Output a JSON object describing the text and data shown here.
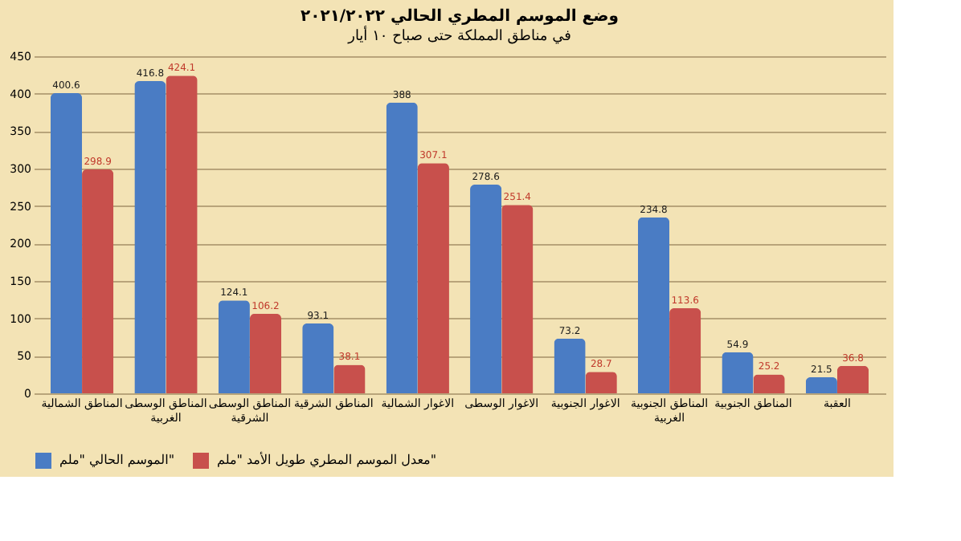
{
  "chart_data": {
    "type": "bar",
    "title": "وضع الموسم المطري الحالي ٢٠٢١/٢٠٢٢",
    "subtitle": "في مناطق المملكة حتى صباح ١٠ أيار",
    "categories": [
      "المناطق الشمالية",
      "المناطق الوسطى الغربية",
      "المناطق الوسطى الشرقية",
      "المناطق الشرقية",
      "الاغوار الشمالية",
      "الاغوار الوسطى",
      "الاغوار الجنوبية",
      "المناطق الجنوبية الغربية",
      "المناطق الجنوبية",
      "العقبة"
    ],
    "series": [
      {
        "name": "الموسم الحالي \"ملم\"",
        "color": "#4a7cc4",
        "values": [
          400.6,
          416.8,
          124.1,
          93.1,
          388,
          278.6,
          73.2,
          234.8,
          54.9,
          21.5
        ]
      },
      {
        "name": "معدل الموسم المطري طويل الأمد \"ملم\"",
        "color": "#c8504c",
        "values": [
          298.9,
          424.1,
          106.2,
          38.1,
          307.1,
          251.4,
          28.7,
          113.6,
          25.2,
          36.8
        ]
      }
    ],
    "ylim": [
      0,
      450
    ],
    "yticks": [
      0,
      50,
      100,
      150,
      200,
      250,
      300,
      350,
      400,
      450
    ],
    "grid": "y",
    "legend": "bottom",
    "data_labels": true
  }
}
